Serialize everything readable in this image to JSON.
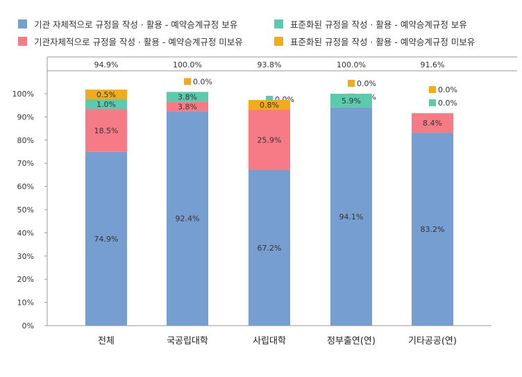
{
  "chart_data": {
    "type": "bar",
    "stacked": true,
    "categories": [
      "전체",
      "국공립대학",
      "사립대학",
      "정부출연(연)",
      "기타공공(연)"
    ],
    "totals": [
      "94.9%",
      "100.0%",
      "93.8%",
      "100.0%",
      "91.6%"
    ],
    "ylim": [
      0,
      100
    ],
    "yticks": [
      "0%",
      "10%",
      "20%",
      "30%",
      "40%",
      "50%",
      "60%",
      "70%",
      "80%",
      "90%",
      "100%"
    ],
    "legend_position": "top",
    "series": [
      {
        "name": "기관 자체적으로 규정을 작성 · 활용 - 예약승계규정 보유",
        "color": "#769ed1",
        "values": [
          74.9,
          92.4,
          67.2,
          94.1,
          83.2
        ]
      },
      {
        "name": "기관자체적으로 규정을 작성 · 활용 - 예약승계규정 미보유",
        "color": "#f77b86",
        "values": [
          18.5,
          3.8,
          25.9,
          0.0,
          8.4
        ]
      },
      {
        "name": "표준화된 규정을 작성 · 활용 - 예약승계규정 보유",
        "color": "#5ccaad",
        "values": [
          1.0,
          3.8,
          0.0,
          5.9,
          0.0
        ]
      },
      {
        "name": "표준화된 규정을 작성 · 활용 - 예약승계규정 미보유",
        "color": "#f2ab1b",
        "values": [
          0.5,
          0.0,
          0.8,
          0.0,
          0.0
        ]
      }
    ]
  }
}
